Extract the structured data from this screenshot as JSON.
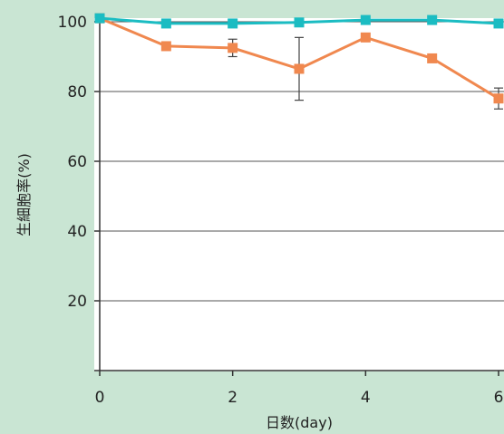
{
  "chart_data": {
    "type": "line",
    "title": "",
    "xlabel": "日数(day)",
    "ylabel": "生細胞率(%)",
    "xlim": [
      0,
      6
    ],
    "ylim": [
      0,
      100
    ],
    "xticks": [
      0,
      2,
      4,
      6
    ],
    "yticks": [
      20,
      40,
      60,
      80,
      100
    ],
    "grid": "horizontal",
    "series": [
      {
        "color": "#f0884f",
        "marker": "square",
        "x": [
          0,
          1,
          2,
          3,
          4,
          5,
          6
        ],
        "y": [
          101,
          93,
          92.5,
          86.5,
          95.5,
          89.5,
          78
        ],
        "error": [
          0,
          0,
          2.5,
          9,
          0,
          0,
          3
        ]
      },
      {
        "color": "#1bbcc2",
        "marker": "square",
        "x": [
          0,
          1,
          2,
          3,
          4,
          5,
          6
        ],
        "y": [
          101,
          99.5,
          99.5,
          99.8,
          100.5,
          100.5,
          99.5
        ],
        "error": [
          0,
          0,
          0,
          0,
          0,
          0,
          0
        ]
      }
    ]
  }
}
